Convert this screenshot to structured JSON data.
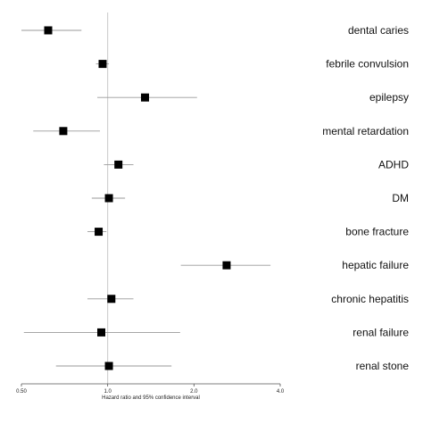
{
  "chart_data": {
    "type": "forest",
    "xscale": "log",
    "xlim": [
      0.5,
      4.0
    ],
    "reference_line": 1.0,
    "xticks": [
      {
        "value": 0.5,
        "label": "0.50"
      },
      {
        "value": 1.0,
        "label": "1.0"
      },
      {
        "value": 2.0,
        "label": "2.0"
      },
      {
        "value": 4.0,
        "label": "4.0"
      }
    ],
    "xlabel": "Hazard ratio and 95% confidence interval",
    "grid": false,
    "rows": [
      {
        "label": "dental caries",
        "hr": 0.62,
        "lower": 0.5,
        "upper": 0.81
      },
      {
        "label": "febrile convulsion",
        "hr": 0.96,
        "lower": 0.91,
        "upper": 1.01
      },
      {
        "label": "epilepsy",
        "hr": 1.35,
        "lower": 0.92,
        "upper": 2.05
      },
      {
        "label": "mental retardation",
        "hr": 0.7,
        "lower": 0.55,
        "upper": 0.94
      },
      {
        "label": "ADHD",
        "hr": 1.09,
        "lower": 0.97,
        "upper": 1.23
      },
      {
        "label": "DM",
        "hr": 1.01,
        "lower": 0.88,
        "upper": 1.15
      },
      {
        "label": "bone fracture",
        "hr": 0.93,
        "lower": 0.85,
        "upper": 0.99
      },
      {
        "label": "hepatic failure",
        "hr": 2.6,
        "lower": 1.8,
        "upper": 3.7
      },
      {
        "label": "chronic hepatitis",
        "hr": 1.03,
        "lower": 0.85,
        "upper": 1.23
      },
      {
        "label": "renal failure",
        "hr": 0.95,
        "lower": 0.51,
        "upper": 1.79
      },
      {
        "label": "renal stone",
        "hr": 1.01,
        "lower": 0.66,
        "upper": 1.67
      }
    ]
  }
}
